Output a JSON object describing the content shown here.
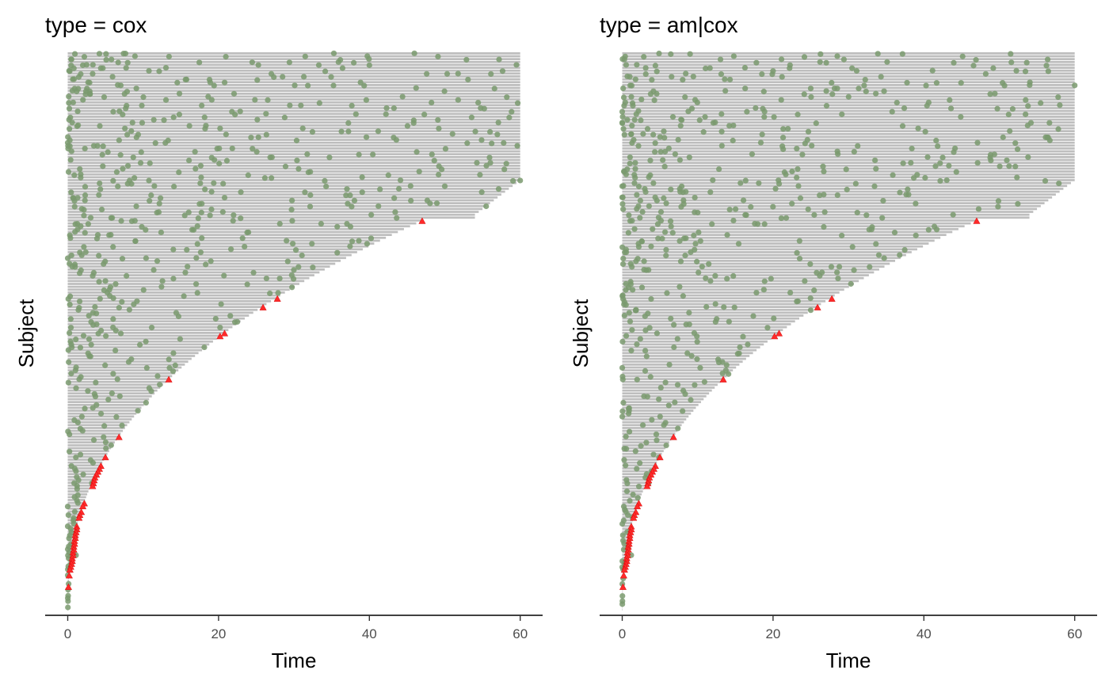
{
  "chart_data": [
    {
      "type": "scatter",
      "title": "type = cox",
      "xlabel": "Time",
      "ylabel": "Subject",
      "xlim": [
        -3,
        63
      ],
      "xticks": [
        0,
        20,
        40,
        60
      ],
      "y_tick_labels": false,
      "grid": false,
      "legend": "none",
      "n_subjects": 194,
      "follow_up_max": 60,
      "colors": {
        "bar": "#bebebe",
        "recurrent_event": "#7a9a6f",
        "terminal_event": "#ff2a2a"
      },
      "terminal_event_times": [
        0.1,
        0.2,
        0.3,
        0.4,
        0.5,
        0.6,
        0.6,
        0.7,
        0.7,
        0.8,
        0.8,
        0.9,
        0.9,
        1.0,
        1.0,
        1.1,
        1.2,
        1.2,
        1.5,
        1.6,
        1.8,
        2.0,
        2.2,
        3.3,
        3.4,
        3.5,
        3.6,
        3.8,
        4.0,
        4.2,
        4.4,
        5.0,
        6.8,
        13.4,
        20.2,
        20.8,
        25.9,
        27.8,
        47.0
      ],
      "recurrent_events_sample": [
        {
          "subject": 1,
          "time": 4.2
        },
        {
          "subject": 2,
          "time": 49.1
        },
        {
          "subject": 3,
          "time": 5.8
        },
        {
          "subject": 3,
          "time": 57.2
        },
        {
          "subject": 4,
          "time": 29.4
        },
        {
          "subject": 5,
          "time": 40.0
        },
        {
          "subject": 5,
          "time": 2.0
        },
        {
          "subject": 8,
          "time": 47.6
        },
        {
          "subject": 10,
          "time": 18.8
        },
        {
          "subject": 12,
          "time": 30.1
        },
        {
          "subject": 17,
          "time": 19.1
        },
        {
          "subject": 22,
          "time": 42.2
        },
        {
          "subject": 28,
          "time": 36.3
        },
        {
          "subject": 34,
          "time": 50.1
        },
        {
          "subject": 45,
          "time": 60.0
        },
        {
          "subject": 47,
          "time": 50.0
        },
        {
          "subject": 52,
          "time": 45.5
        },
        {
          "subject": 60,
          "time": 33.6
        },
        {
          "subject": 75,
          "time": 30.6
        },
        {
          "subject": 84,
          "time": 17.2
        },
        {
          "subject": 96,
          "time": 20.2
        },
        {
          "subject": 110,
          "time": 13.5
        },
        {
          "subject": 130,
          "time": 7.2
        },
        {
          "subject": 150,
          "time": 3.2
        },
        {
          "subject": 175,
          "time": 1.1
        }
      ]
    },
    {
      "type": "scatter",
      "title": "type = am|cox",
      "xlabel": "Time",
      "ylabel": "Subject",
      "xlim": [
        -3,
        63
      ],
      "xticks": [
        0,
        20,
        40,
        60
      ],
      "y_tick_labels": false,
      "grid": false,
      "legend": "none",
      "n_subjects": 194,
      "follow_up_max": 60,
      "colors": {
        "bar": "#bebebe",
        "recurrent_event": "#7a9a6f",
        "terminal_event": "#ff2a2a"
      },
      "terminal_event_times": [
        0.1,
        0.2,
        0.3,
        0.4,
        0.5,
        0.6,
        0.6,
        0.7,
        0.7,
        0.8,
        0.8,
        0.9,
        0.9,
        1.0,
        1.0,
        1.1,
        1.2,
        1.2,
        1.5,
        1.6,
        1.8,
        2.0,
        2.2,
        3.3,
        3.4,
        3.5,
        3.6,
        3.8,
        4.0,
        4.2,
        4.4,
        5.0,
        6.8,
        13.4,
        20.2,
        20.8,
        25.9,
        27.8,
        47.0
      ],
      "recurrent_events_sample": [
        {
          "subject": 1,
          "time": 33.9
        },
        {
          "subject": 3,
          "time": 29.4
        },
        {
          "subject": 4,
          "time": 51.6
        },
        {
          "subject": 6,
          "time": 49.2
        },
        {
          "subject": 7,
          "time": 20.0
        },
        {
          "subject": 12,
          "time": 60.0
        },
        {
          "subject": 15,
          "time": 48.8
        },
        {
          "subject": 20,
          "time": 43.6
        },
        {
          "subject": 25,
          "time": 54.2
        },
        {
          "subject": 30,
          "time": 50.5
        },
        {
          "subject": 40,
          "time": 51.3
        },
        {
          "subject": 46,
          "time": 57.9
        },
        {
          "subject": 52,
          "time": 34.6
        },
        {
          "subject": 62,
          "time": 41.7
        },
        {
          "subject": 75,
          "time": 32.8
        },
        {
          "subject": 90,
          "time": 25.0
        },
        {
          "subject": 105,
          "time": 15.5
        },
        {
          "subject": 125,
          "time": 8.0
        },
        {
          "subject": 150,
          "time": 3.5
        },
        {
          "subject": 175,
          "time": 1.2
        }
      ]
    }
  ]
}
